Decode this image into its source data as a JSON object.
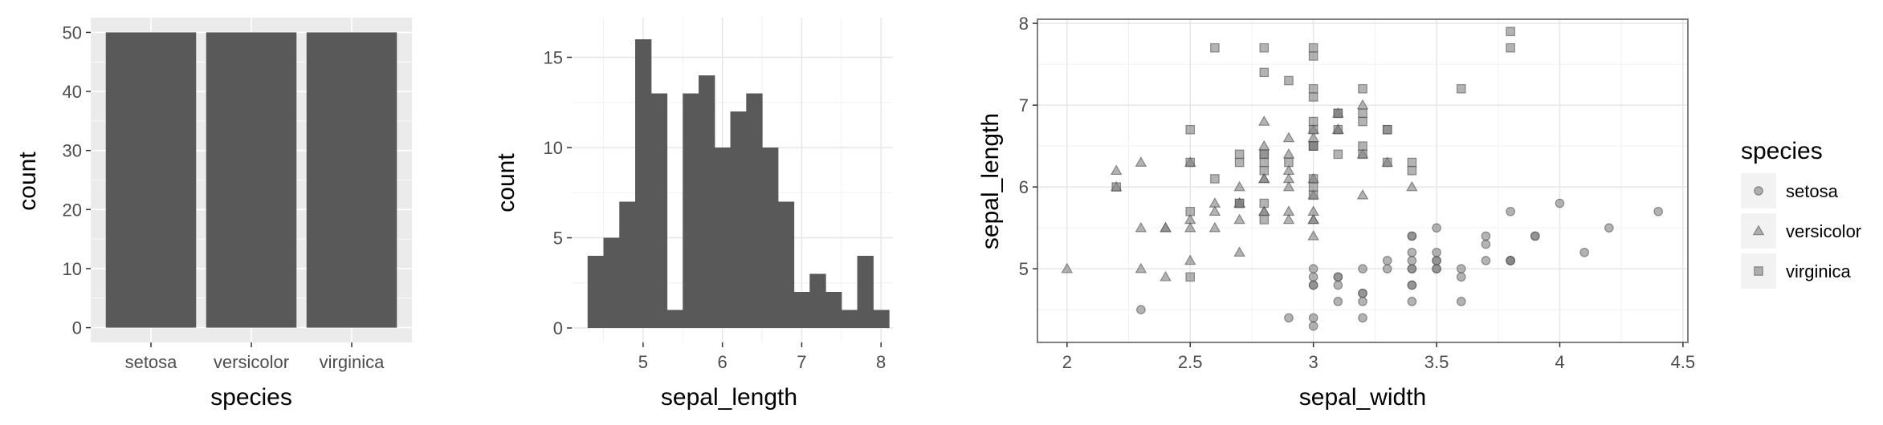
{
  "chart_data": [
    {
      "type": "bar",
      "categories": [
        "setosa",
        "versicolor",
        "virginica"
      ],
      "values": [
        50,
        50,
        50
      ],
      "xlabel": "species",
      "ylabel": "count",
      "ylim": [
        -2.5,
        52.5
      ],
      "yticks": [
        0,
        10,
        20,
        30,
        40,
        50
      ],
      "grid": true,
      "theme": "gray panel, white grid",
      "bar_color": "#595959"
    },
    {
      "type": "bar",
      "subtype": "histogram",
      "bin_width": 0.2,
      "bins_left_edge": [
        4.3,
        4.5,
        4.7,
        4.9,
        5.1,
        5.3,
        5.5,
        5.7,
        5.9,
        6.1,
        6.3,
        6.5,
        6.7,
        6.9,
        7.1,
        7.3,
        7.5,
        7.7,
        7.9
      ],
      "values": [
        4,
        5,
        7,
        16,
        13,
        1,
        13,
        14,
        10,
        12,
        13,
        10,
        7,
        2,
        3,
        2,
        1,
        4,
        1
      ],
      "xlabel": "sepal_length",
      "ylabel": "count",
      "xlim": [
        4.1,
        8.15
      ],
      "ylim": [
        -0.8,
        17.2
      ],
      "xticks": [
        5,
        6,
        7,
        8
      ],
      "yticks": [
        0,
        5,
        10,
        15
      ],
      "grid": true,
      "theme": "white panel, light grid",
      "bar_color": "#595959"
    },
    {
      "type": "scatter",
      "xlabel": "sepal_width",
      "ylabel": "sepal_length",
      "xlim": [
        1.88,
        4.52
      ],
      "ylim": [
        4.1,
        8.05
      ],
      "xticks": [
        "2",
        "2.5",
        "3",
        "3.5",
        "4",
        "4.5"
      ],
      "yticks": [
        "5",
        "6",
        "7",
        "8"
      ],
      "grid": true,
      "theme": "white panel, gray border",
      "point_color": "#808080",
      "legend": {
        "title": "species",
        "position": "right"
      },
      "series": [
        {
          "name": "setosa",
          "marker": "circle",
          "points": [
            [
              3.5,
              5.1
            ],
            [
              3.0,
              4.9
            ],
            [
              3.2,
              4.7
            ],
            [
              3.1,
              4.6
            ],
            [
              3.6,
              5.0
            ],
            [
              3.9,
              5.4
            ],
            [
              3.4,
              4.6
            ],
            [
              3.4,
              5.0
            ],
            [
              2.9,
              4.4
            ],
            [
              3.1,
              4.9
            ],
            [
              3.7,
              5.4
            ],
            [
              3.4,
              4.8
            ],
            [
              3.0,
              4.8
            ],
            [
              3.0,
              4.3
            ],
            [
              4.0,
              5.8
            ],
            [
              4.4,
              5.7
            ],
            [
              3.9,
              5.4
            ],
            [
              3.5,
              5.1
            ],
            [
              3.8,
              5.7
            ],
            [
              3.8,
              5.1
            ],
            [
              3.4,
              5.4
            ],
            [
              3.7,
              5.1
            ],
            [
              3.6,
              4.6
            ],
            [
              3.3,
              5.1
            ],
            [
              3.4,
              4.8
            ],
            [
              3.0,
              5.0
            ],
            [
              3.4,
              5.0
            ],
            [
              3.5,
              5.2
            ],
            [
              3.4,
              5.2
            ],
            [
              3.2,
              4.7
            ],
            [
              3.1,
              4.8
            ],
            [
              3.4,
              5.4
            ],
            [
              4.1,
              5.2
            ],
            [
              4.2,
              5.5
            ],
            [
              3.1,
              4.9
            ],
            [
              3.2,
              5.0
            ],
            [
              3.5,
              5.5
            ],
            [
              3.6,
              4.9
            ],
            [
              3.0,
              4.4
            ],
            [
              3.4,
              5.1
            ],
            [
              3.5,
              5.0
            ],
            [
              2.3,
              4.5
            ],
            [
              3.2,
              4.4
            ],
            [
              3.5,
              5.0
            ],
            [
              3.8,
              5.1
            ],
            [
              3.0,
              4.8
            ],
            [
              3.8,
              5.1
            ],
            [
              3.2,
              4.6
            ],
            [
              3.7,
              5.3
            ],
            [
              3.3,
              5.0
            ]
          ]
        },
        {
          "name": "versicolor",
          "marker": "triangle",
          "points": [
            [
              3.2,
              7.0
            ],
            [
              3.2,
              6.4
            ],
            [
              3.1,
              6.9
            ],
            [
              2.3,
              5.5
            ],
            [
              2.8,
              6.5
            ],
            [
              2.8,
              5.7
            ],
            [
              3.3,
              6.3
            ],
            [
              2.4,
              4.9
            ],
            [
              2.9,
              6.6
            ],
            [
              2.7,
              5.2
            ],
            [
              2.0,
              5.0
            ],
            [
              3.0,
              5.9
            ],
            [
              2.2,
              6.0
            ],
            [
              2.9,
              6.1
            ],
            [
              2.9,
              5.6
            ],
            [
              3.1,
              6.7
            ],
            [
              3.0,
              5.6
            ],
            [
              2.7,
              5.8
            ],
            [
              2.2,
              6.2
            ],
            [
              2.5,
              5.6
            ],
            [
              3.2,
              5.9
            ],
            [
              2.8,
              6.1
            ],
            [
              2.5,
              6.3
            ],
            [
              2.8,
              6.1
            ],
            [
              2.9,
              6.4
            ],
            [
              3.0,
              6.6
            ],
            [
              2.8,
              6.8
            ],
            [
              3.0,
              6.7
            ],
            [
              2.9,
              6.0
            ],
            [
              2.6,
              5.7
            ],
            [
              2.4,
              5.5
            ],
            [
              2.4,
              5.5
            ],
            [
              2.7,
              5.8
            ],
            [
              2.7,
              6.0
            ],
            [
              3.0,
              5.4
            ],
            [
              3.4,
              6.0
            ],
            [
              3.1,
              6.7
            ],
            [
              2.3,
              6.3
            ],
            [
              3.0,
              5.6
            ],
            [
              2.5,
              5.5
            ],
            [
              2.6,
              5.5
            ],
            [
              3.0,
              6.1
            ],
            [
              2.6,
              5.8
            ],
            [
              2.3,
              5.0
            ],
            [
              2.7,
              5.6
            ],
            [
              3.0,
              5.7
            ],
            [
              2.9,
              5.7
            ],
            [
              2.9,
              6.2
            ],
            [
              2.5,
              5.1
            ],
            [
              2.8,
              5.7
            ]
          ]
        },
        {
          "name": "virginica",
          "marker": "square",
          "points": [
            [
              3.3,
              6.3
            ],
            [
              2.7,
              5.8
            ],
            [
              3.0,
              7.1
            ],
            [
              2.9,
              6.3
            ],
            [
              3.0,
              6.5
            ],
            [
              3.0,
              7.6
            ],
            [
              2.5,
              4.9
            ],
            [
              2.9,
              7.3
            ],
            [
              2.5,
              6.7
            ],
            [
              3.6,
              7.2
            ],
            [
              3.2,
              6.5
            ],
            [
              2.7,
              6.4
            ],
            [
              3.0,
              6.8
            ],
            [
              2.5,
              5.7
            ],
            [
              2.8,
              5.8
            ],
            [
              3.2,
              6.4
            ],
            [
              3.0,
              6.5
            ],
            [
              3.8,
              7.7
            ],
            [
              2.6,
              7.7
            ],
            [
              2.2,
              6.0
            ],
            [
              3.2,
              6.9
            ],
            [
              2.8,
              5.6
            ],
            [
              2.8,
              7.7
            ],
            [
              2.7,
              6.3
            ],
            [
              3.3,
              6.7
            ],
            [
              3.2,
              7.2
            ],
            [
              2.8,
              6.2
            ],
            [
              3.0,
              6.1
            ],
            [
              2.8,
              6.4
            ],
            [
              3.0,
              7.2
            ],
            [
              2.8,
              7.4
            ],
            [
              3.8,
              7.9
            ],
            [
              2.8,
              6.4
            ],
            [
              2.8,
              6.3
            ],
            [
              2.6,
              6.1
            ],
            [
              3.0,
              7.7
            ],
            [
              3.4,
              6.3
            ],
            [
              3.1,
              6.4
            ],
            [
              3.0,
              6.0
            ],
            [
              3.1,
              6.9
            ],
            [
              3.1,
              6.7
            ],
            [
              3.1,
              6.9
            ],
            [
              2.7,
              5.8
            ],
            [
              3.2,
              6.8
            ],
            [
              3.3,
              6.7
            ],
            [
              3.0,
              6.7
            ],
            [
              2.5,
              6.3
            ],
            [
              3.0,
              6.5
            ],
            [
              3.4,
              6.2
            ],
            [
              3.0,
              5.9
            ]
          ]
        }
      ]
    }
  ]
}
